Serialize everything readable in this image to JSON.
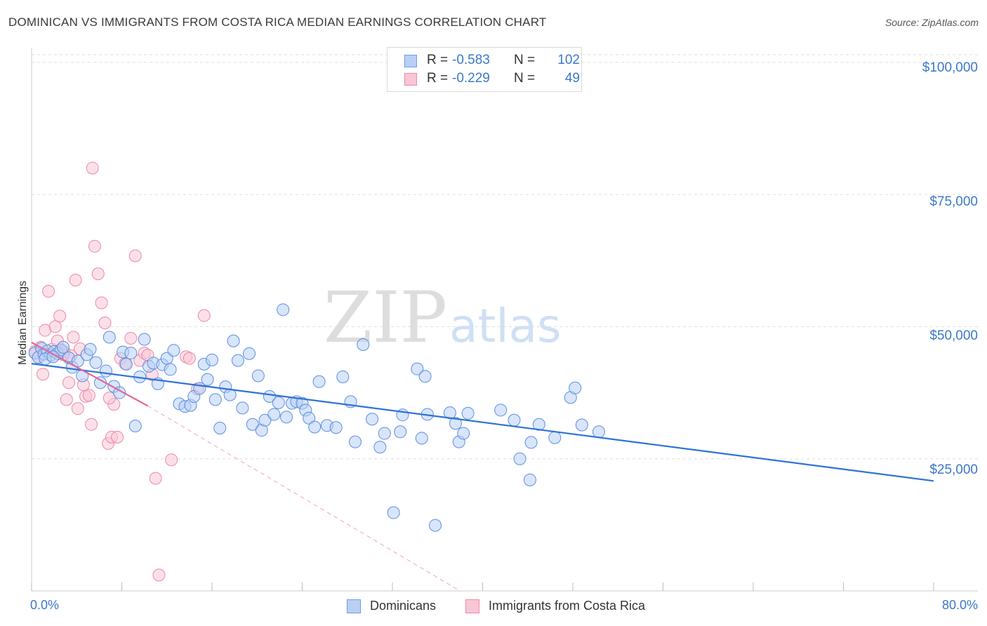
{
  "title": "DOMINICAN VS IMMIGRANTS FROM COSTA RICA MEDIAN EARNINGS CORRELATION CHART",
  "source": "Source: ZipAtlas.com",
  "watermark": {
    "zip": "ZIP",
    "atlas": "atlas"
  },
  "legend": {
    "r_label": "R =",
    "n_label": "N =",
    "rows": [
      {
        "r": "-0.583",
        "n": "102",
        "color": "#6b9ee8",
        "fill": "#b8d0f5"
      },
      {
        "r": "-0.229",
        "n": "49",
        "color": "#ee8aa8",
        "fill": "#f9c6d5"
      }
    ]
  },
  "bottom_legend": [
    "Dominicans",
    "Immigrants from Costa Rica"
  ],
  "x_axis": {
    "min_label": "0.0%",
    "max_label": "80.0%"
  },
  "y_axis": {
    "ticks": [
      "$100,000",
      "$75,000",
      "$50,000",
      "$25,000"
    ]
  },
  "chart_data": {
    "type": "scatter",
    "title": "DOMINICAN VS IMMIGRANTS FROM COSTA RICA MEDIAN EARNINGS CORRELATION CHART",
    "xlabel": "",
    "ylabel": "Median Earnings",
    "xlim": [
      0,
      80
    ],
    "ylim": [
      0,
      102500
    ],
    "y_ticks": [
      25000,
      50000,
      75000,
      100000
    ],
    "series": [
      {
        "name": "Dominicans",
        "color": "#5b8fe0",
        "fill": "#b8d0f5",
        "trend": {
          "x0": 0,
          "y0": 43000,
          "x1": 80,
          "y1": 20800,
          "color": "#2f72d6"
        },
        "points": [
          [
            0.3,
            45000
          ],
          [
            0.6,
            44200
          ],
          [
            0.9,
            45900
          ],
          [
            1.1,
            44800
          ],
          [
            1.4,
            45400
          ],
          [
            1.7,
            44600
          ],
          [
            2.0,
            45300
          ],
          [
            2.3,
            44900
          ],
          [
            2.6,
            45600
          ],
          [
            1.2,
            43900
          ],
          [
            1.9,
            44300
          ],
          [
            2.8,
            46100
          ],
          [
            3.3,
            44100
          ],
          [
            3.6,
            42300
          ],
          [
            4.1,
            43500
          ],
          [
            4.5,
            40700
          ],
          [
            4.9,
            44700
          ],
          [
            5.2,
            45700
          ],
          [
            5.7,
            43200
          ],
          [
            6.1,
            39400
          ],
          [
            6.6,
            41600
          ],
          [
            6.9,
            48000
          ],
          [
            7.3,
            38700
          ],
          [
            7.8,
            37500
          ],
          [
            8.1,
            45200
          ],
          [
            8.4,
            42900
          ],
          [
            8.8,
            45000
          ],
          [
            9.2,
            31200
          ],
          [
            9.6,
            40500
          ],
          [
            10.0,
            47600
          ],
          [
            10.4,
            42500
          ],
          [
            10.8,
            43100
          ],
          [
            11.2,
            39200
          ],
          [
            11.6,
            42800
          ],
          [
            12.0,
            44000
          ],
          [
            12.3,
            41900
          ],
          [
            12.6,
            45500
          ],
          [
            13.1,
            35400
          ],
          [
            13.6,
            34900
          ],
          [
            14.1,
            35100
          ],
          [
            14.4,
            36800
          ],
          [
            14.9,
            38300
          ],
          [
            15.3,
            42900
          ],
          [
            15.6,
            40000
          ],
          [
            16.0,
            43700
          ],
          [
            16.3,
            36200
          ],
          [
            16.7,
            30800
          ],
          [
            17.2,
            38600
          ],
          [
            17.6,
            37100
          ],
          [
            17.9,
            47300
          ],
          [
            18.3,
            43600
          ],
          [
            18.7,
            34600
          ],
          [
            19.3,
            44900
          ],
          [
            19.6,
            31500
          ],
          [
            20.1,
            40700
          ],
          [
            20.4,
            30400
          ],
          [
            20.7,
            32300
          ],
          [
            21.1,
            36800
          ],
          [
            21.5,
            33400
          ],
          [
            21.9,
            35600
          ],
          [
            22.3,
            53200
          ],
          [
            22.6,
            32900
          ],
          [
            23.1,
            35500
          ],
          [
            23.5,
            35800
          ],
          [
            24.0,
            35500
          ],
          [
            24.3,
            34200
          ],
          [
            24.6,
            32700
          ],
          [
            25.1,
            31000
          ],
          [
            25.5,
            39600
          ],
          [
            26.2,
            31300
          ],
          [
            27.0,
            30900
          ],
          [
            27.6,
            40500
          ],
          [
            28.3,
            35800
          ],
          [
            28.7,
            28200
          ],
          [
            29.4,
            46600
          ],
          [
            30.2,
            32500
          ],
          [
            30.9,
            27200
          ],
          [
            31.3,
            29800
          ],
          [
            32.1,
            14800
          ],
          [
            32.7,
            30100
          ],
          [
            32.9,
            33300
          ],
          [
            34.2,
            42000
          ],
          [
            34.6,
            28900
          ],
          [
            34.9,
            40600
          ],
          [
            35.1,
            33400
          ],
          [
            35.8,
            12400
          ],
          [
            37.1,
            33700
          ],
          [
            37.6,
            31700
          ],
          [
            37.9,
            28200
          ],
          [
            38.3,
            29800
          ],
          [
            38.7,
            33600
          ],
          [
            41.6,
            34200
          ],
          [
            42.8,
            32300
          ],
          [
            43.3,
            25000
          ],
          [
            44.2,
            21000
          ],
          [
            44.3,
            28100
          ],
          [
            45.0,
            31500
          ],
          [
            46.4,
            29000
          ],
          [
            47.8,
            36600
          ],
          [
            48.2,
            38400
          ],
          [
            48.8,
            31400
          ],
          [
            50.3,
            30100
          ]
        ]
      },
      {
        "name": "Immigrants from Costa Rica",
        "color": "#ec88a6",
        "fill": "#f9c6d5",
        "trend": {
          "x0": 0,
          "y0": 47000,
          "x1": 10.3,
          "y1": 35000,
          "color": "#e0679a"
        },
        "trend_extension": {
          "x0": 10.3,
          "y0": 35000,
          "x1": 38.0,
          "y1": 0,
          "color": "#f0a3bd"
        },
        "points": [
          [
            0.3,
            45300
          ],
          [
            0.6,
            44200
          ],
          [
            0.8,
            46100
          ],
          [
            1.0,
            41000
          ],
          [
            1.2,
            49300
          ],
          [
            1.5,
            56700
          ],
          [
            1.8,
            45700
          ],
          [
            2.1,
            50000
          ],
          [
            2.3,
            47300
          ],
          [
            2.5,
            52000
          ],
          [
            2.7,
            45400
          ],
          [
            2.9,
            45200
          ],
          [
            3.1,
            36200
          ],
          [
            3.3,
            39400
          ],
          [
            3.5,
            44500
          ],
          [
            3.7,
            48000
          ],
          [
            3.9,
            58800
          ],
          [
            4.1,
            34500
          ],
          [
            4.3,
            45800
          ],
          [
            4.6,
            39000
          ],
          [
            5.4,
            80000
          ],
          [
            5.6,
            65200
          ],
          [
            5.9,
            60000
          ],
          [
            6.2,
            54500
          ],
          [
            6.5,
            50700
          ],
          [
            6.8,
            27900
          ],
          [
            7.1,
            29100
          ],
          [
            7.3,
            35300
          ],
          [
            7.6,
            29100
          ],
          [
            7.9,
            44000
          ],
          [
            8.3,
            43000
          ],
          [
            4.8,
            36800
          ],
          [
            5.1,
            37000
          ],
          [
            5.3,
            31500
          ],
          [
            6.9,
            36500
          ],
          [
            8.8,
            47800
          ],
          [
            9.2,
            63400
          ],
          [
            9.6,
            43600
          ],
          [
            10.0,
            45000
          ],
          [
            10.3,
            44600
          ],
          [
            10.7,
            40900
          ],
          [
            11.0,
            21300
          ],
          [
            11.3,
            3000
          ],
          [
            12.4,
            24800
          ],
          [
            13.7,
            44300
          ],
          [
            14.0,
            44000
          ],
          [
            14.7,
            38200
          ],
          [
            15.3,
            52100
          ],
          [
            2.8,
            44700
          ]
        ]
      }
    ]
  }
}
